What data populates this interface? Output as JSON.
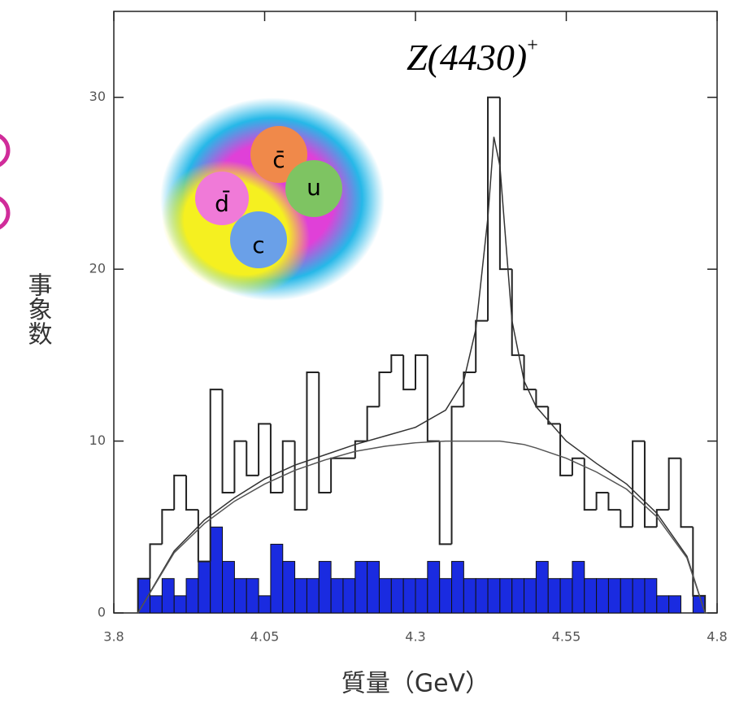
{
  "chart_data": {
    "type": "histogram",
    "title": "Z(4430)",
    "title_superscript": "+",
    "xlabel": "質量（GeV）",
    "ylabel": "事象数",
    "annotations": [
      "c̄",
      "u",
      "d̄",
      "c"
    ],
    "xlim": [
      3.8,
      4.8
    ],
    "xticks": [
      3.8,
      4.05,
      4.3,
      4.55,
      4.8
    ],
    "ylim": [
      0,
      35
    ],
    "yticks": [
      0,
      10,
      20,
      30
    ],
    "bins": [
      3.84,
      3.86,
      3.88,
      3.9,
      3.92,
      3.94,
      3.96,
      3.98,
      4.0,
      4.02,
      4.04,
      4.06,
      4.08,
      4.1,
      4.12,
      4.14,
      4.16,
      4.18,
      4.2,
      4.22,
      4.24,
      4.26,
      4.28,
      4.3,
      4.32,
      4.34,
      4.36,
      4.38,
      4.4,
      4.42,
      4.44,
      4.46,
      4.48,
      4.5,
      4.52,
      4.54,
      4.56,
      4.58,
      4.6,
      4.62,
      4.64,
      4.66,
      4.68,
      4.7,
      4.72,
      4.74,
      4.76,
      4.78
    ],
    "series": [
      {
        "color": "#222222",
        "values": [
          2,
          4,
          6,
          8,
          6,
          3,
          13,
          7,
          10,
          8,
          11,
          7,
          10,
          6,
          14,
          7,
          9,
          9,
          10,
          12,
          14,
          15,
          13,
          15,
          10,
          4,
          12,
          14,
          17,
          30,
          20,
          15,
          13,
          12,
          11,
          8,
          9,
          6,
          7,
          6,
          5,
          10,
          5,
          6,
          9,
          5,
          1
        ]
      },
      {
        "color": "#1a2be0",
        "values": [
          2,
          1,
          2,
          1,
          2,
          3,
          5,
          3,
          2,
          2,
          1,
          4,
          3,
          2,
          2,
          3,
          2,
          2,
          3,
          3,
          2,
          2,
          2,
          2,
          3,
          2,
          3,
          2,
          2,
          2,
          2,
          2,
          2,
          3,
          2,
          2,
          3,
          2,
          2,
          2,
          2,
          2,
          2,
          1,
          1,
          0,
          1
        ]
      }
    ],
    "curves": [
      {
        "color": "#333333",
        "x": [
          3.84,
          3.9,
          3.95,
          4.0,
          4.05,
          4.1,
          4.15,
          4.2,
          4.25,
          4.3,
          4.35,
          4.38,
          4.4,
          4.42,
          4.43,
          4.44,
          4.46,
          4.48,
          4.5,
          4.55,
          4.6,
          4.65,
          4.7,
          4.75,
          4.78
        ],
        "values": [
          0,
          3.6,
          5.4,
          6.7,
          7.8,
          8.6,
          9.2,
          9.8,
          10.3,
          10.8,
          11.8,
          13.5,
          16.5,
          23,
          27.7,
          26,
          17,
          13.5,
          12,
          10,
          8.7,
          7.5,
          5.8,
          3.3,
          0
        ]
      },
      {
        "color": "#555555",
        "x": [
          3.84,
          3.9,
          3.95,
          4.0,
          4.05,
          4.1,
          4.15,
          4.2,
          4.25,
          4.3,
          4.35,
          4.38,
          4.4,
          4.42,
          4.43,
          4.44,
          4.46,
          4.48,
          4.5,
          4.55,
          4.6,
          4.65,
          4.7,
          4.75,
          4.78
        ],
        "values": [
          0,
          3.5,
          5.2,
          6.5,
          7.5,
          8.3,
          8.9,
          9.4,
          9.7,
          9.9,
          10,
          10,
          10,
          10,
          10,
          10,
          9.9,
          9.8,
          9.6,
          9,
          8.2,
          7.2,
          5.6,
          3.2,
          0
        ]
      }
    ]
  }
}
